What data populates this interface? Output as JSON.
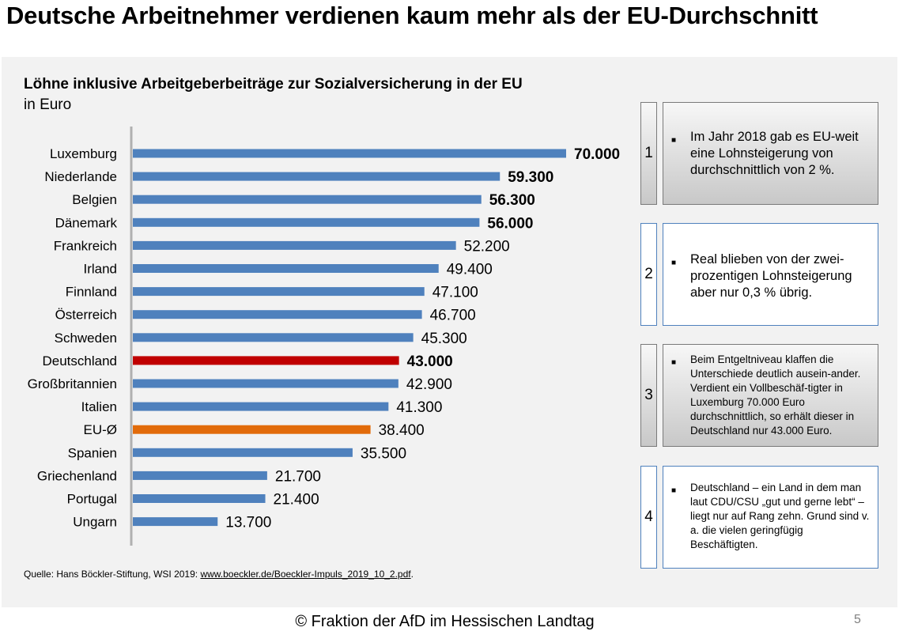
{
  "title": "Deutsche Arbeitnehmer verdienen kaum mehr als der EU-Durchschnitt",
  "chart_data": {
    "type": "bar",
    "orientation": "horizontal",
    "title": "Löhne inklusive Arbeitgeberbeiträge zur Sozialversicherung in der EU",
    "subtitle": "in Euro",
    "xlim": [
      0,
      70000
    ],
    "grid": false,
    "categories": [
      "Luxemburg",
      "Niederlande",
      "Belgien",
      "Dänemark",
      "Frankreich",
      "Irland",
      "Finnland",
      "Österreich",
      "Schweden",
      "Deutschland",
      "Großbritannien",
      "Italien",
      "EU-Ø",
      "Spanien",
      "Griechenland",
      "Portugal",
      "Ungarn"
    ],
    "values": [
      70000,
      59300,
      56300,
      56000,
      52200,
      49400,
      47100,
      46700,
      45300,
      43000,
      42900,
      41300,
      38400,
      35500,
      21700,
      21400,
      13700
    ],
    "value_labels": [
      "70.000",
      "59.300",
      "56.300",
      "56.000",
      "52.200",
      "49.400",
      "47.100",
      "46.700",
      "45.300",
      "43.000",
      "42.900",
      "41.300",
      "38.400",
      "35.500",
      "21.700",
      "21.400",
      "13.700"
    ],
    "bold_labels": [
      true,
      true,
      true,
      true,
      false,
      false,
      false,
      false,
      false,
      true,
      false,
      false,
      false,
      false,
      false,
      false,
      false
    ],
    "bar_colors": [
      "#4f81bd",
      "#4f81bd",
      "#4f81bd",
      "#4f81bd",
      "#4f81bd",
      "#4f81bd",
      "#4f81bd",
      "#4f81bd",
      "#4f81bd",
      "#c00000",
      "#4f81bd",
      "#4f81bd",
      "#e26b0a",
      "#4f81bd",
      "#4f81bd",
      "#4f81bd",
      "#4f81bd"
    ]
  },
  "source": {
    "prefix": "Quelle:  Hans Böckler-Stiftung, WSI 2019: ",
    "link": "www.boeckler.de/Boeckler-Impuls_2019_10_2.pdf",
    "suffix": "."
  },
  "boxes": [
    {
      "number": "1",
      "text": "Im Jahr 2018 gab es EU-weit eine Lohnsteigerung von durchschnittlich von 2 %.",
      "style": "grey"
    },
    {
      "number": "2",
      "text": "Real blieben von der zwei-prozentigen Lohnsteigerung aber nur 0,3 % übrig.",
      "style": "light"
    },
    {
      "number": "3",
      "text": "Beim Entgeltniveau klaffen die Unterschiede deutlich ausein-ander. Verdient ein Vollbeschäf-tigter in Luxemburg 70.000 Euro durchschnittlich, so erhält dieser in Deutschland nur 43.000 Euro.",
      "style": "grey"
    },
    {
      "number": "4",
      "text": "Deutschland – ein Land in dem man laut CDU/CSU „gut und gerne lebt“ – liegt  nur auf Rang zehn. Grund sind v. a. die vielen geringfügig Beschäftigten.",
      "style": "light"
    }
  ],
  "footer": "© Fraktion der AfD im Hessischen Landtag",
  "page_number": "5"
}
